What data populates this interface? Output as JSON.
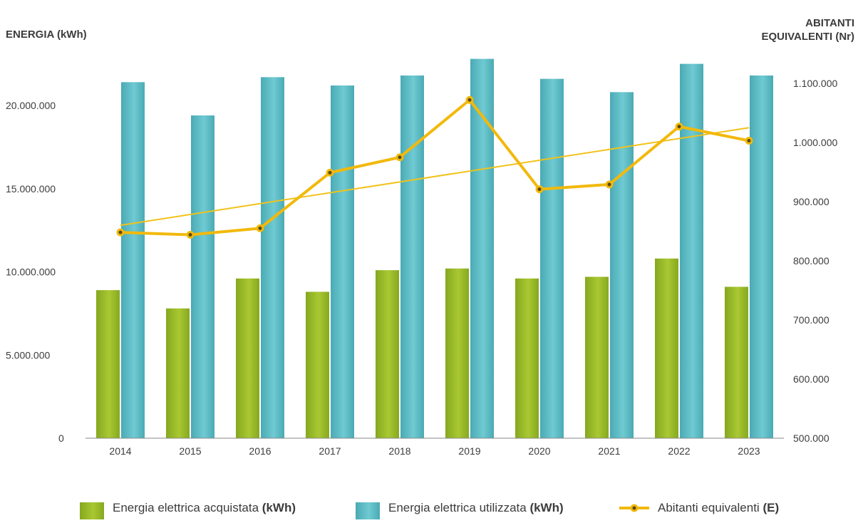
{
  "chart_data": {
    "type": "bar",
    "left_axis_title": "ENERGIA (kWh)",
    "right_axis_title_line1": "ABITANTI",
    "right_axis_title_line2": "EQUIVALENTI (Nr)",
    "categories": [
      "2014",
      "2015",
      "2016",
      "2017",
      "2018",
      "2019",
      "2020",
      "2021",
      "2022",
      "2023"
    ],
    "left_ylim": [
      0,
      22000000
    ],
    "right_ylim": [
      500000,
      1100000
    ],
    "left_ticks": [
      0,
      5000000,
      10000000,
      15000000,
      20000000
    ],
    "left_tick_labels": [
      "0",
      "5.000.000",
      "10.000.000",
      "15.000.000",
      "20.000.000"
    ],
    "right_ticks": [
      500000,
      600000,
      700000,
      800000,
      900000,
      1000000,
      1100000
    ],
    "right_tick_labels": [
      "500.000",
      "600.000",
      "700.000",
      "800.000",
      "900.000",
      "1.000.000",
      "1.100.000"
    ],
    "series": [
      {
        "name": "Energia elettrica acquistata",
        "unit": "(kWh)",
        "kind": "bar",
        "axis": "left",
        "color": "#9cbd2a",
        "values": [
          8900000,
          7800000,
          9600000,
          8800000,
          10100000,
          10200000,
          9600000,
          9700000,
          10800000,
          9100000
        ]
      },
      {
        "name": "Energia elettrica utilizzata",
        "unit": "(kWh)",
        "kind": "bar",
        "axis": "left",
        "color": "#5fbfc8",
        "values": [
          21400000,
          19400000,
          21700000,
          21200000,
          21800000,
          22800000,
          21600000,
          20800000,
          22500000,
          21800000
        ]
      },
      {
        "name": "Abitanti equivalenti",
        "unit": "(E)",
        "kind": "line",
        "axis": "right",
        "color": "#f2b90c",
        "values": [
          848000,
          844000,
          855000,
          949000,
          975000,
          1072000,
          921000,
          929000,
          1027000,
          1003000
        ]
      }
    ],
    "trendline": {
      "axis": "right",
      "color": "#f2c21a",
      "start": 860000,
      "end": 1025000
    },
    "grid": false,
    "legend_position": "bottom"
  }
}
